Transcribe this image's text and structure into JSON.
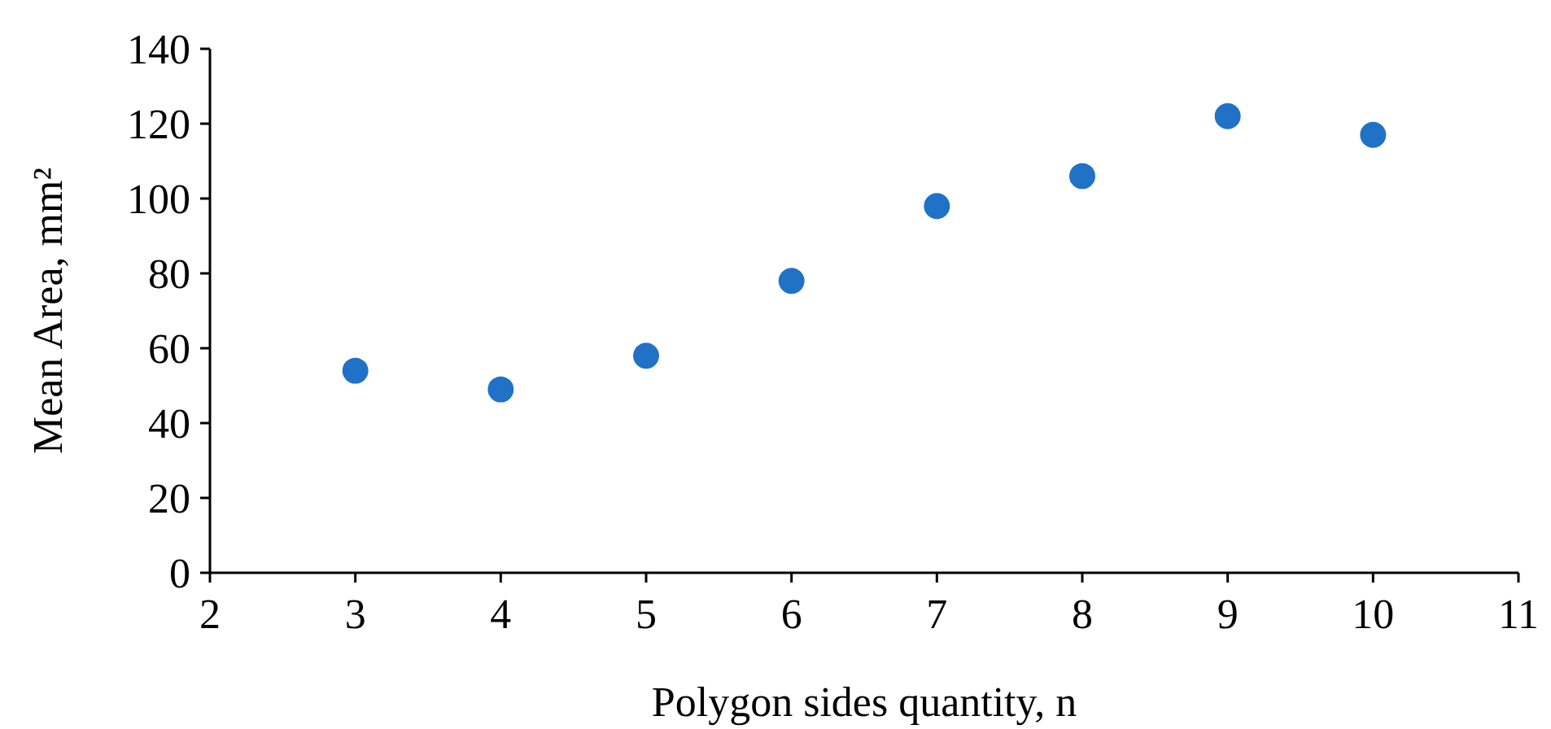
{
  "chart_data": {
    "type": "scatter",
    "xlabel": "Polygon sides quantity, n",
    "ylabel": "Mean Area, mm²",
    "x": [
      3,
      4,
      5,
      6,
      7,
      8,
      9,
      10
    ],
    "series": [
      {
        "color": "#1f72c6",
        "values": [
          54,
          49,
          58,
          78,
          98,
          106,
          122,
          117
        ]
      }
    ],
    "xlim": [
      2,
      11
    ],
    "xticks": [
      2,
      3,
      4,
      5,
      6,
      7,
      8,
      9,
      10,
      11
    ],
    "ylim": [
      0,
      140
    ],
    "yticks": [
      0,
      20,
      40,
      60,
      80,
      100,
      120,
      140
    ],
    "marker": "circle"
  }
}
